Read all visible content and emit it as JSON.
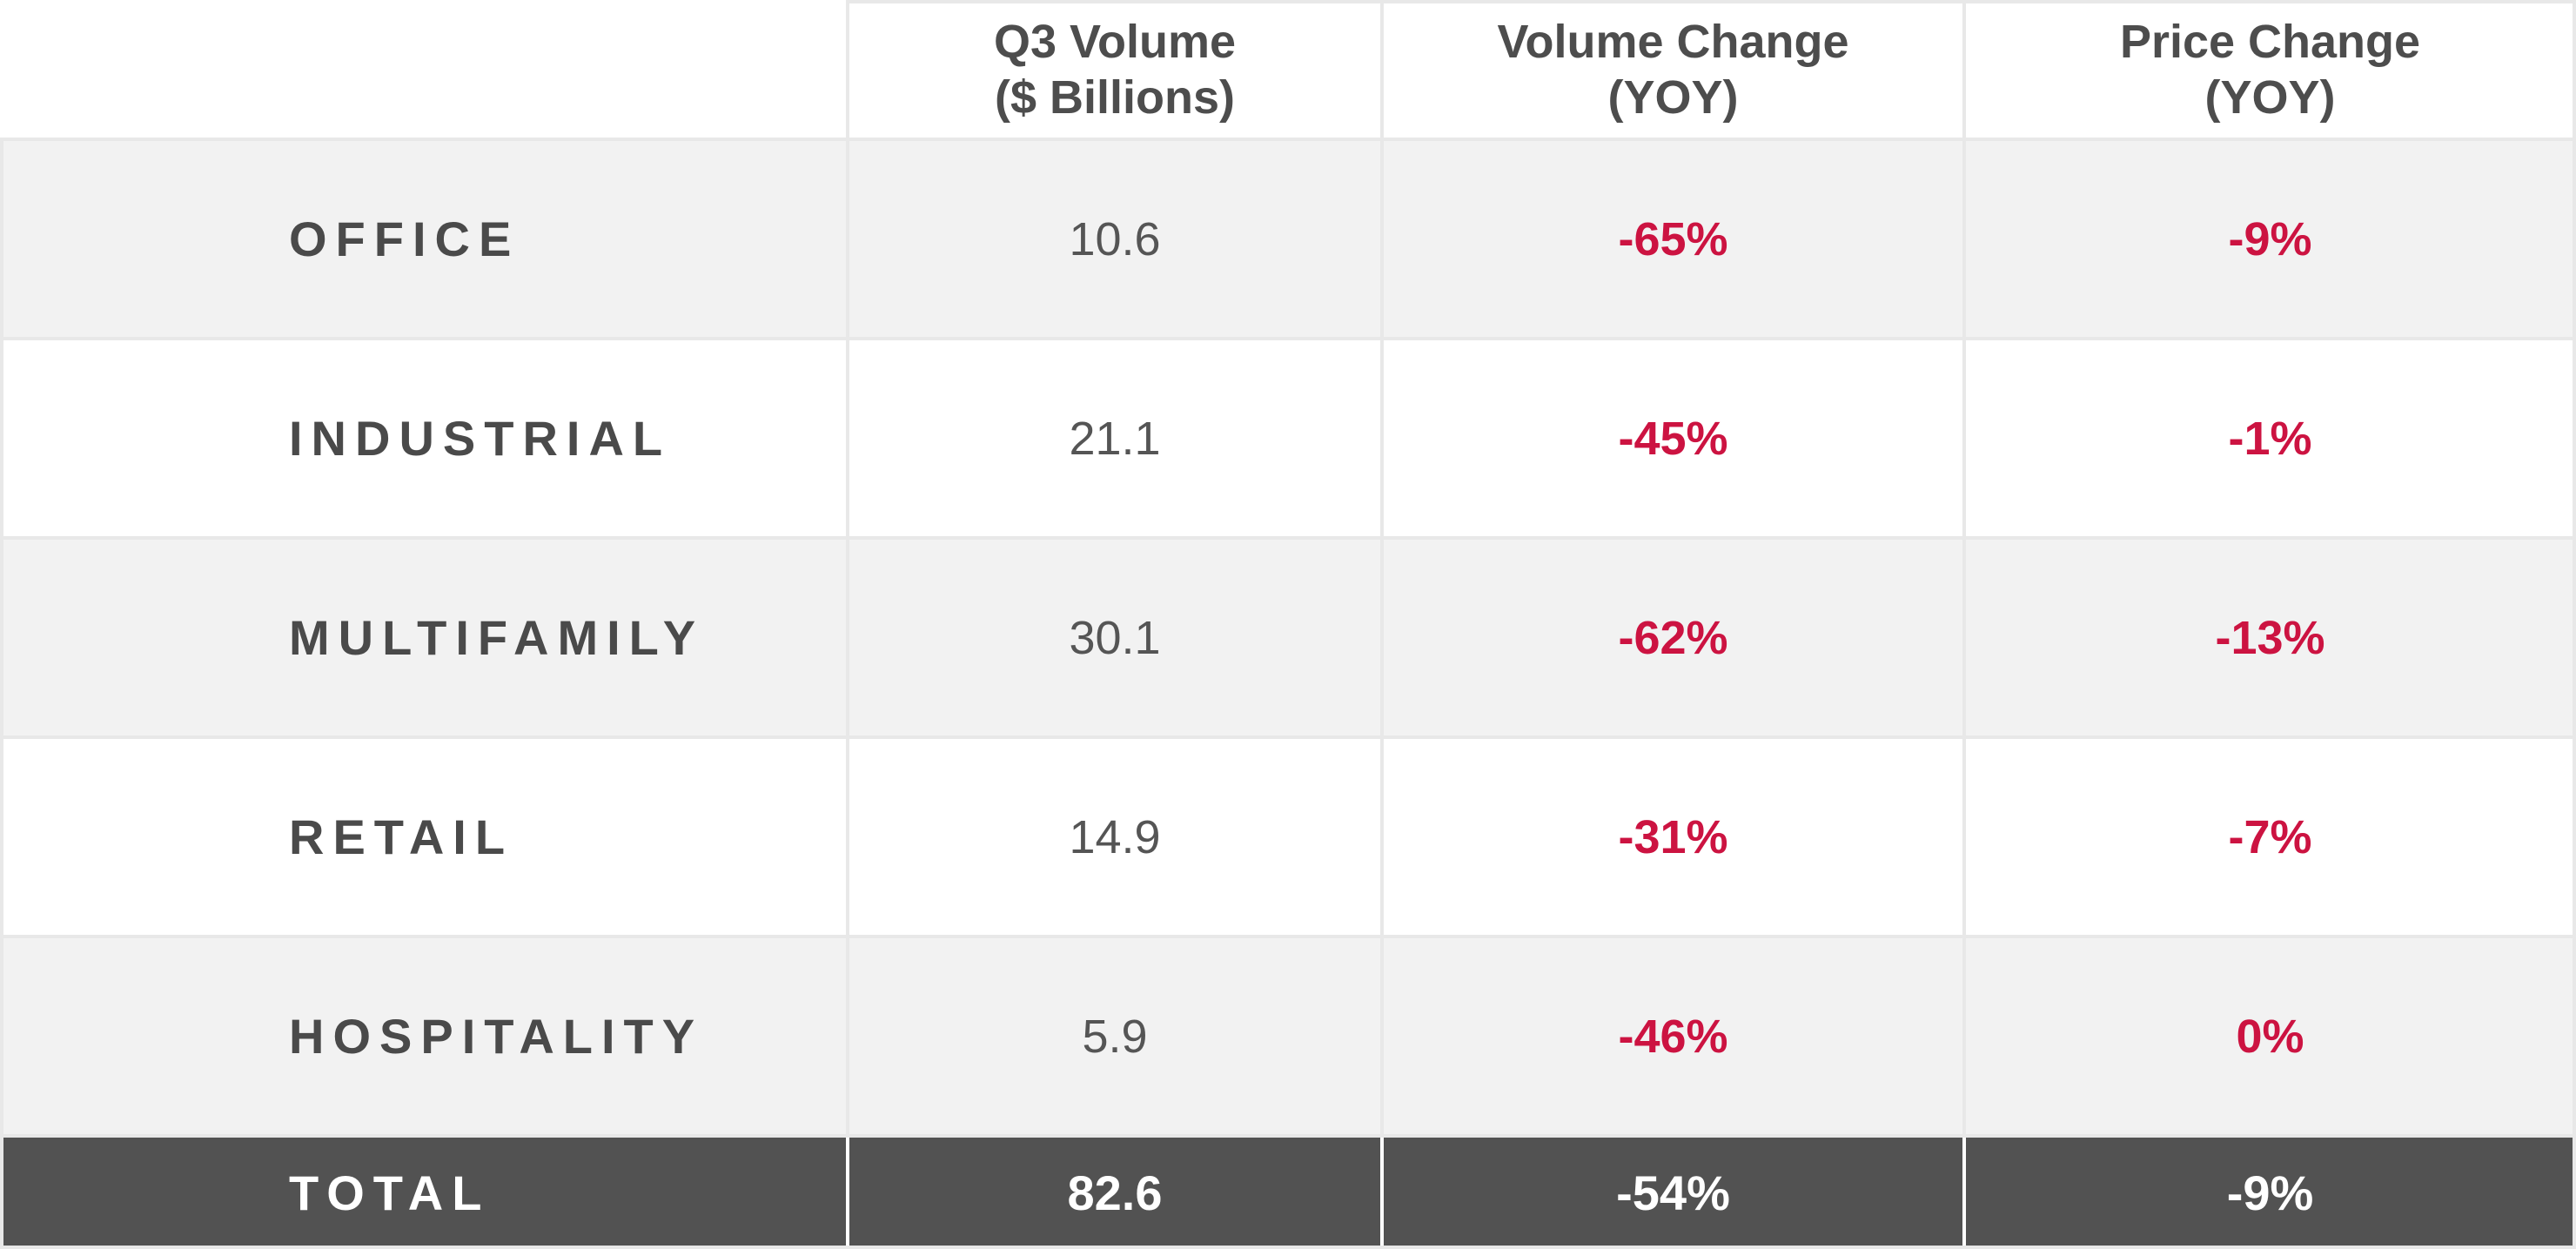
{
  "chart_data": {
    "type": "table",
    "columns": [
      "",
      "Q3 Volume ($ Billions)",
      "Volume Change (YOY)",
      "Price Change (YOY)"
    ],
    "header_lines": [
      [],
      [
        "Q3 Volume",
        "($ Billions)"
      ],
      [
        "Volume Change",
        "(YOY)"
      ],
      [
        "Price Change",
        "(YOY)"
      ]
    ],
    "rows": [
      {
        "sector": "OFFICE",
        "volume": "10.6",
        "volume_change": "-65%",
        "price_change": "-9%"
      },
      {
        "sector": "INDUSTRIAL",
        "volume": "21.1",
        "volume_change": "-45%",
        "price_change": "-1%"
      },
      {
        "sector": "MULTIFAMILY",
        "volume": "30.1",
        "volume_change": "-62%",
        "price_change": "-13%"
      },
      {
        "sector": "RETAIL",
        "volume": "14.9",
        "volume_change": "-31%",
        "price_change": "-7%"
      },
      {
        "sector": "HOSPITALITY",
        "volume": "5.9",
        "volume_change": "-46%",
        "price_change": "0%"
      }
    ],
    "total": {
      "sector": "TOTAL",
      "volume": "82.6",
      "volume_change": "-54%",
      "price_change": "-9%"
    }
  },
  "colors": {
    "header_text": "#4d4d4d",
    "label_text": "#4a4a4a",
    "value_text": "#555555",
    "change_text": "#cc1341",
    "row_shaded": "#f2f2f2",
    "row_plain": "#ffffff",
    "total_background": "#525252",
    "total_text": "#ffffff",
    "grid_line": "#e8e8e8"
  }
}
